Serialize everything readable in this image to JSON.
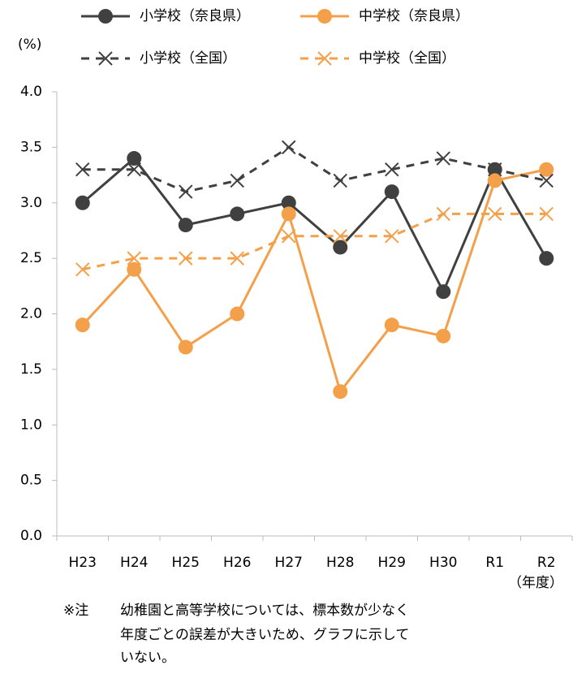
{
  "chart_data": {
    "type": "line",
    "y_unit": "(%)",
    "x_label": "（年度）",
    "categories": [
      "H23",
      "H24",
      "H25",
      "H26",
      "H27",
      "H28",
      "H29",
      "H30",
      "R1",
      "R2"
    ],
    "series": [
      {
        "name": "小学校（奈良県）",
        "color": "#404040",
        "dashed": false,
        "marker": "circle",
        "values": [
          3.0,
          3.4,
          2.8,
          2.9,
          3.0,
          2.6,
          3.1,
          2.2,
          3.3,
          2.5
        ]
      },
      {
        "name": "中学校（奈良県）",
        "color": "#f4a04a",
        "dashed": false,
        "marker": "circle",
        "values": [
          1.9,
          2.4,
          1.7,
          2.0,
          2.9,
          1.3,
          1.9,
          1.8,
          3.2,
          3.3
        ]
      },
      {
        "name": "小学校（全国）",
        "color": "#404040",
        "dashed": true,
        "marker": "x",
        "values": [
          3.3,
          3.3,
          3.1,
          3.2,
          3.5,
          3.2,
          3.3,
          3.4,
          3.3,
          3.2
        ]
      },
      {
        "name": "中学校（全国）",
        "color": "#f4a04a",
        "dashed": true,
        "marker": "x",
        "values": [
          2.4,
          2.5,
          2.5,
          2.5,
          2.7,
          2.7,
          2.7,
          2.9,
          2.9,
          2.9
        ]
      }
    ],
    "ylim": [
      0,
      4
    ],
    "yticks": [
      {
        "value": 0,
        "label": "0.0"
      },
      0.5,
      {
        "value": 1,
        "label": "1.0"
      },
      1.5,
      {
        "value": 2,
        "label": "2.0"
      },
      2.5,
      {
        "value": 3,
        "label": "3.0"
      },
      3.5,
      {
        "value": 4,
        "label": "4.0"
      }
    ],
    "grid": false,
    "note": [
      "※注",
      "幼稚園と高等学校については、標本数が少なく",
      "年度ごとの誤差が大きいため、グラフに示して",
      "いない。"
    ]
  }
}
